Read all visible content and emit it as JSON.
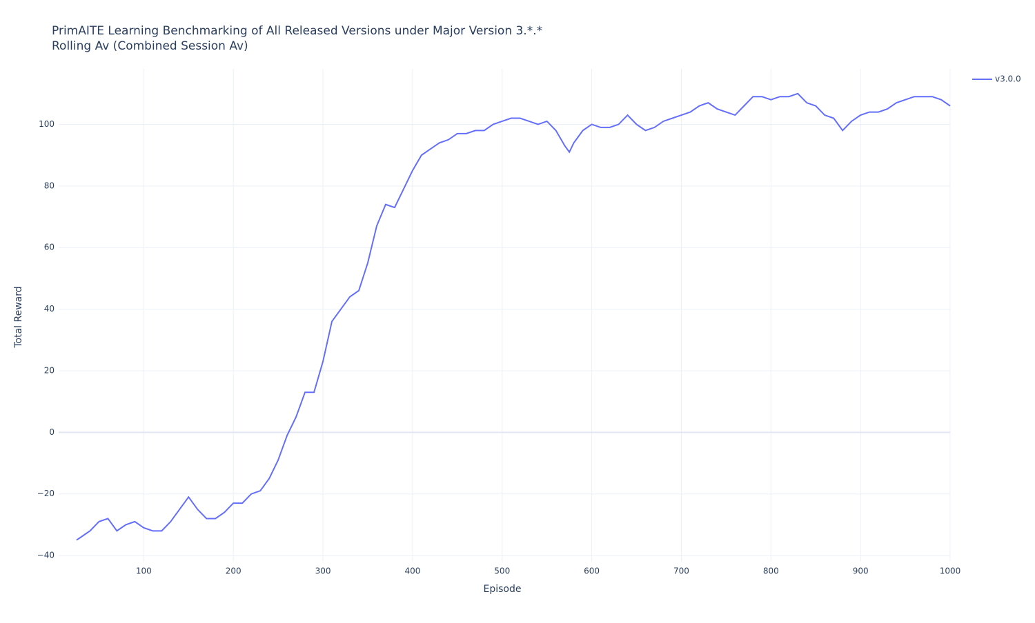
{
  "chart_data": {
    "type": "line",
    "title": "PrimAITE Learning Benchmarking of All Released Versions under Major Version 3.*.*",
    "subtitle": "Rolling Av (Combined Session Av)",
    "x_label": "Episode",
    "y_label": "Total Reward",
    "x": [
      25,
      30,
      40,
      50,
      60,
      70,
      80,
      90,
      100,
      110,
      120,
      130,
      140,
      150,
      160,
      170,
      180,
      190,
      200,
      210,
      220,
      230,
      240,
      250,
      260,
      270,
      280,
      290,
      300,
      310,
      320,
      330,
      340,
      350,
      360,
      370,
      380,
      390,
      400,
      410,
      420,
      430,
      440,
      450,
      460,
      470,
      480,
      490,
      500,
      510,
      520,
      530,
      540,
      550,
      560,
      570,
      575,
      580,
      590,
      600,
      610,
      620,
      630,
      640,
      650,
      660,
      670,
      680,
      690,
      700,
      710,
      720,
      730,
      740,
      750,
      760,
      770,
      780,
      790,
      800,
      810,
      820,
      830,
      840,
      850,
      860,
      870,
      880,
      890,
      900,
      910,
      920,
      930,
      940,
      950,
      960,
      970,
      980,
      990,
      1000
    ],
    "series": [
      {
        "name": "v3.0.0",
        "color": "#636efa",
        "values": [
          -35,
          -34,
          -32,
          -29,
          -28,
          -32,
          -30,
          -29,
          -31,
          -32,
          -32,
          -29,
          -25,
          -21,
          -25,
          -28,
          -28,
          -26,
          -23,
          -23,
          -20,
          -19,
          -15,
          -9,
          -1,
          5,
          13,
          13,
          23,
          36,
          40,
          44,
          46,
          55,
          67,
          74,
          73,
          79,
          85,
          90,
          92,
          94,
          95,
          97,
          97,
          98,
          98,
          100,
          101,
          102,
          102,
          101,
          100,
          101,
          98,
          93,
          91,
          94,
          98,
          100,
          99,
          99,
          100,
          103,
          100,
          98,
          99,
          101,
          102,
          103,
          104,
          106,
          107,
          105,
          104,
          103,
          106,
          109,
          109,
          108,
          109,
          109,
          110,
          107,
          106,
          103,
          102,
          98,
          101,
          103,
          104,
          104,
          105,
          107,
          108,
          109,
          109,
          109,
          108,
          106
        ]
      }
    ],
    "xlim": [
      5,
      1000
    ],
    "ylim": [
      -42,
      118
    ],
    "xticks": [
      100,
      200,
      300,
      400,
      500,
      600,
      700,
      800,
      900,
      1000
    ],
    "yticks": [
      {
        "value": -40,
        "label": "−40"
      },
      {
        "value": -20,
        "label": "−20"
      },
      0,
      20,
      40,
      60,
      80,
      100
    ],
    "grid": true,
    "legend_position": "top-right"
  }
}
